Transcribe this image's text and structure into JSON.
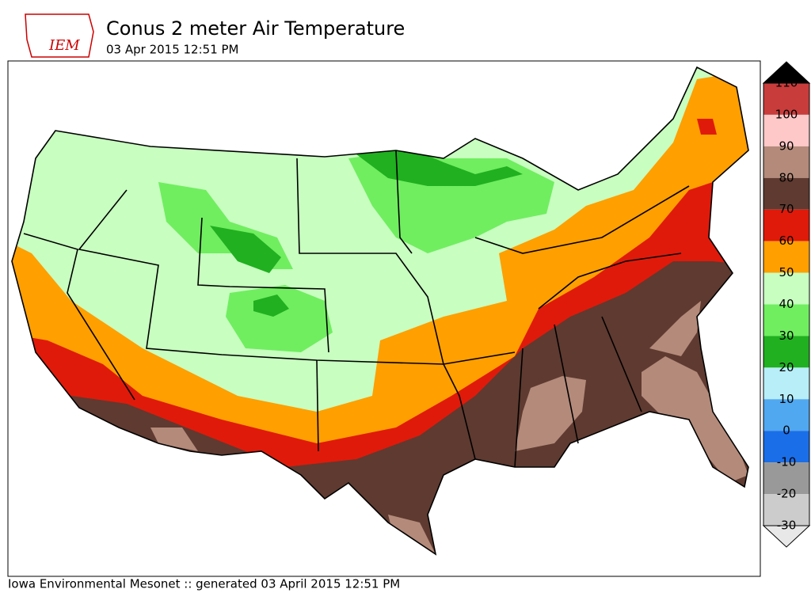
{
  "header": {
    "logo": "IEM",
    "title": "Conus 2 meter Air Temperature",
    "subtitle": "03 Apr 2015 12:51 PM"
  },
  "footer": "Iowa Environmental Mesonet :: generated 03 April 2015 12:51 PM",
  "colorbar": {
    "levels": [
      110,
      100,
      90,
      80,
      70,
      60,
      50,
      40,
      30,
      20,
      10,
      0,
      -10,
      -20,
      -30
    ],
    "colors": [
      "#c83c3c",
      "#ffc8c8",
      "#b48a7a",
      "#5e3a30",
      "#e01a0a",
      "#ff9f00",
      "#c8ffc0",
      "#70ee60",
      "#20b020",
      "#b8eef8",
      "#50a8f0",
      "#1a6ee8",
      "#999999",
      "#cccccc"
    ],
    "over_color": "#000000",
    "under_color": "#e8e8e8"
  }
}
